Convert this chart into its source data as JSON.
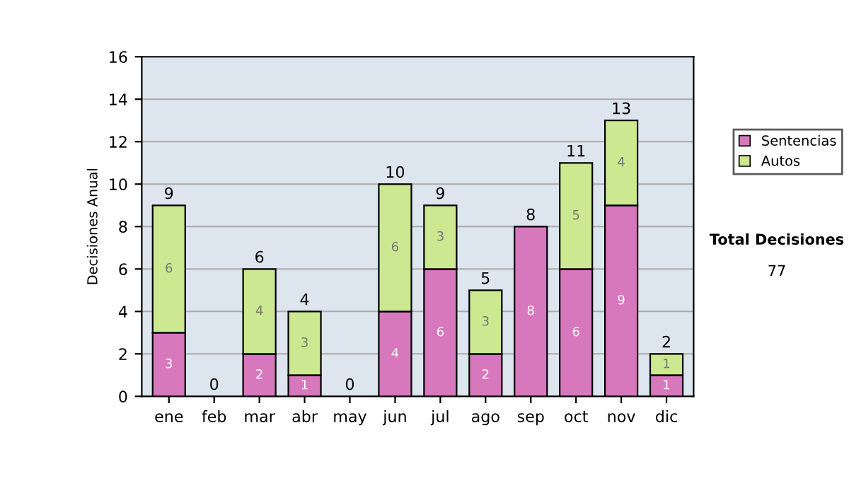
{
  "chart_data": {
    "type": "bar",
    "stacked": true,
    "ylabel": "Decisiones Anual",
    "categories": [
      "ene",
      "feb",
      "mar",
      "abr",
      "may",
      "jun",
      "jul",
      "ago",
      "sep",
      "oct",
      "nov",
      "dic"
    ],
    "series": [
      {
        "name": "Sentencias",
        "color": "#d878bc",
        "values": [
          3,
          0,
          2,
          1,
          0,
          4,
          6,
          2,
          8,
          6,
          9,
          1
        ],
        "value_labels": [
          "3",
          null,
          "2",
          "1",
          null,
          "4",
          "6",
          "2",
          "8",
          "6",
          "9",
          "1"
        ]
      },
      {
        "name": "Autos",
        "color": "#cce890",
        "values": [
          6,
          0,
          4,
          3,
          0,
          6,
          3,
          3,
          0,
          5,
          4,
          1
        ],
        "value_labels": [
          "6",
          null,
          "4",
          "3",
          null,
          "6",
          "3",
          "3",
          null,
          "5",
          "4",
          "1"
        ]
      }
    ],
    "totals": [
      "9",
      "0",
      "6",
      "4",
      "0",
      "10",
      "9",
      "5",
      "8",
      "11",
      "13",
      "2"
    ],
    "ylim": [
      0,
      16
    ],
    "yticks": [
      0,
      2,
      4,
      6,
      8,
      10,
      12,
      14,
      16
    ],
    "grid": "y",
    "legend": "right",
    "annotations": [
      "Total Decisiones",
      "77"
    ]
  }
}
